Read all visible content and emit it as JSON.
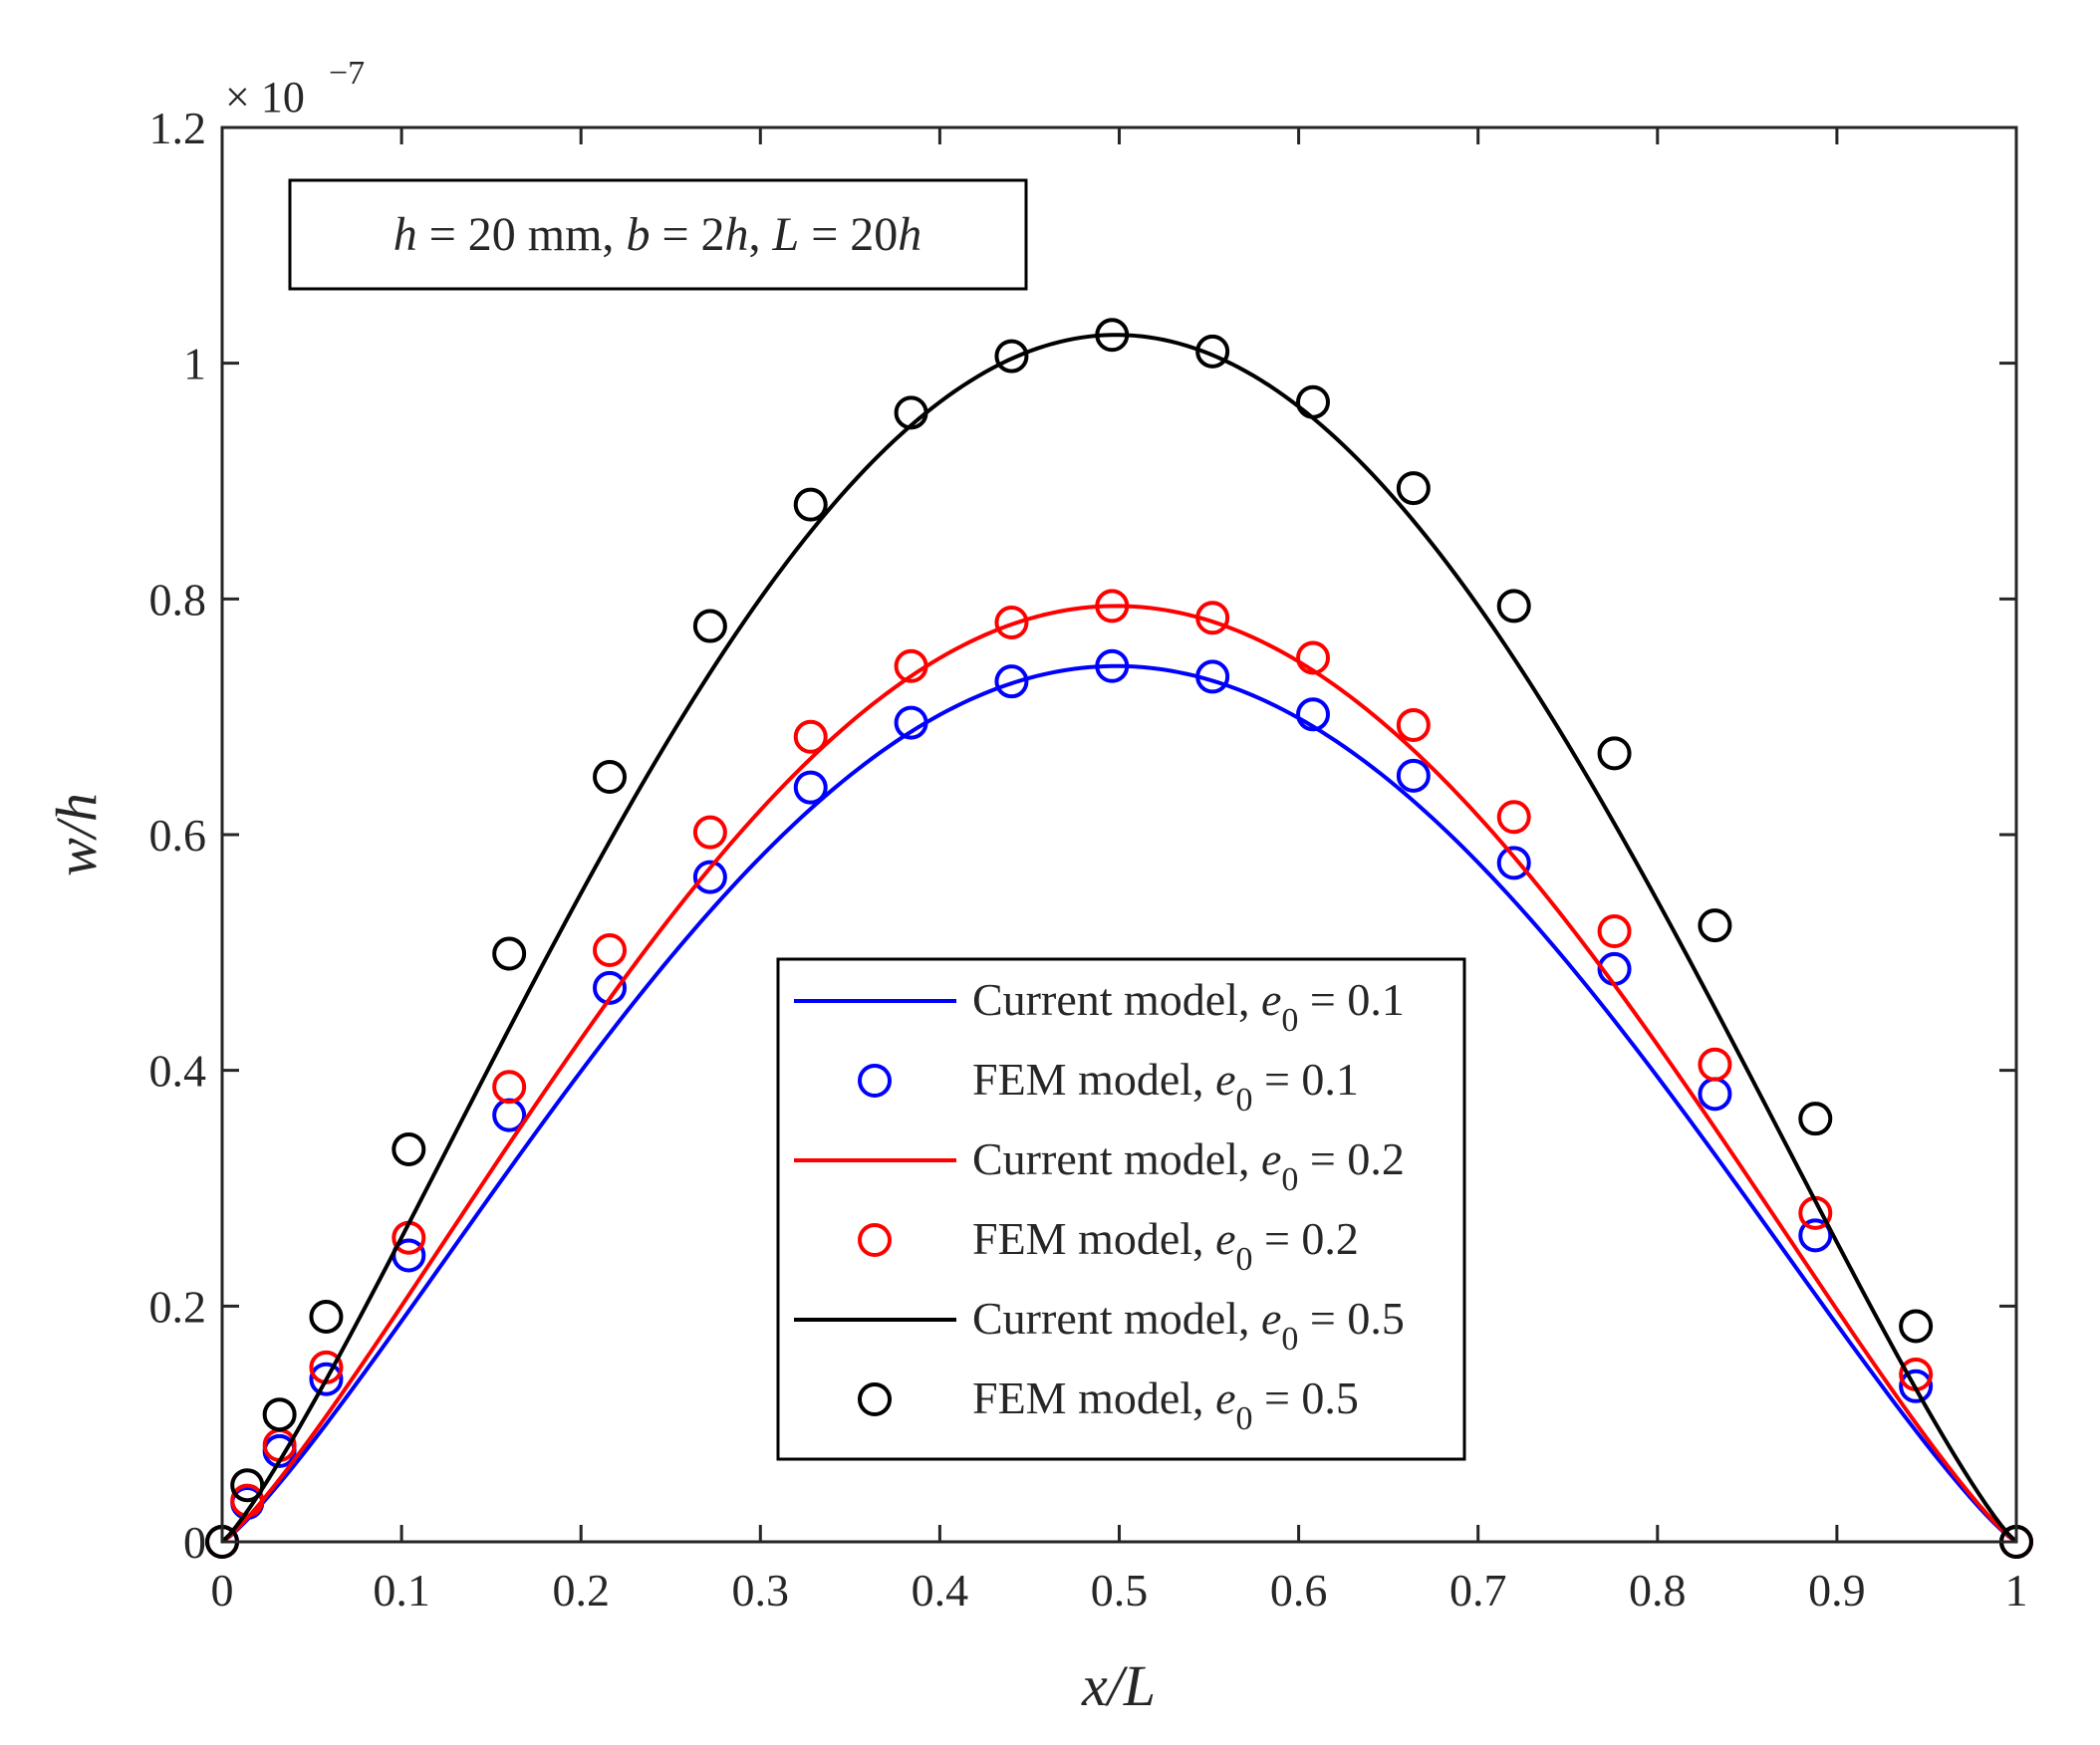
{
  "chart_data": {
    "type": "line",
    "xlabel": "x/L",
    "ylabel": "w/h",
    "xlim": [
      0,
      1
    ],
    "ylim": [
      0,
      1.2
    ],
    "y_scale_label": "× 10",
    "y_scale_exponent": "−7",
    "x_ticks": [
      "0",
      "0.1",
      "0.2",
      "0.3",
      "0.4",
      "0.5",
      "0.6",
      "0.7",
      "0.8",
      "0.9",
      "1"
    ],
    "y_ticks": [
      "0",
      "0.2",
      "0.4",
      "0.6",
      "0.8",
      "1",
      "1.2"
    ],
    "grid": false,
    "annotation": {
      "h_label": "h",
      "h_value": " = 20 mm, ",
      "b_label": "b",
      "b_value": " = 2",
      "b_unit": "h",
      "sep": ", ",
      "L_label": "L",
      "L_value": " = 20",
      "L_unit": "h"
    },
    "legend_position": "center-bottom",
    "marker_x": [
      0,
      0.014,
      0.032,
      0.058,
      0.104,
      0.16,
      0.216,
      0.272,
      0.328,
      0.384,
      0.44,
      0.496,
      0.552,
      0.608,
      0.664,
      0.72,
      0.776,
      0.832,
      0.888,
      0.944,
      1.0
    ],
    "series": [
      {
        "name": "Current model, e0 = 0.1",
        "legend_prefix": "Current model, ",
        "legend_var": "e",
        "legend_sub": "0",
        "legend_suffix": " = 0.1",
        "kind": "line",
        "color": "#0000ff",
        "peak": 0.743
      },
      {
        "name": "FEM model, e0 = 0.1",
        "legend_prefix": "FEM model, ",
        "legend_var": "e",
        "legend_sub": "0",
        "legend_suffix": " = 0.1",
        "kind": "marker",
        "color": "#0000ff",
        "values": [
          0,
          0.033,
          0.077,
          0.138,
          0.243,
          0.362,
          0.47,
          0.564,
          0.64,
          0.695,
          0.73,
          0.743,
          0.734,
          0.702,
          0.65,
          0.576,
          0.486,
          0.38,
          0.26,
          0.132,
          0
        ]
      },
      {
        "name": "Current model, e0 = 0.2",
        "legend_prefix": "Current model, ",
        "legend_var": "e",
        "legend_sub": "0",
        "legend_suffix": " = 0.2",
        "kind": "line",
        "color": "#ff0000",
        "peak": 0.794
      },
      {
        "name": "FEM model, e0 = 0.2",
        "legend_prefix": "FEM model, ",
        "legend_var": "e",
        "legend_sub": "0",
        "legend_suffix": " = 0.2",
        "kind": "marker",
        "color": "#ff0000",
        "values": [
          0,
          0.035,
          0.082,
          0.148,
          0.258,
          0.386,
          0.502,
          0.602,
          0.683,
          0.743,
          0.78,
          0.794,
          0.784,
          0.75,
          0.693,
          0.615,
          0.518,
          0.405,
          0.279,
          0.142,
          0
        ]
      },
      {
        "name": "Current model, e0 = 0.5",
        "legend_prefix": "Current model, ",
        "legend_var": "e",
        "legend_sub": "0",
        "legend_suffix": " = 0.5",
        "kind": "line",
        "color": "#000000",
        "peak": 1.024
      },
      {
        "name": "FEM model, e0 = 0.5",
        "legend_prefix": "FEM model, ",
        "legend_var": "e",
        "legend_sub": "0",
        "legend_suffix": " = 0.5",
        "kind": "marker",
        "color": "#000000",
        "values": [
          0,
          0.048,
          0.108,
          0.191,
          0.333,
          0.499,
          0.649,
          0.777,
          0.88,
          0.958,
          1.006,
          1.024,
          1.01,
          0.967,
          0.894,
          0.794,
          0.669,
          0.523,
          0.359,
          0.183,
          0
        ]
      }
    ]
  }
}
